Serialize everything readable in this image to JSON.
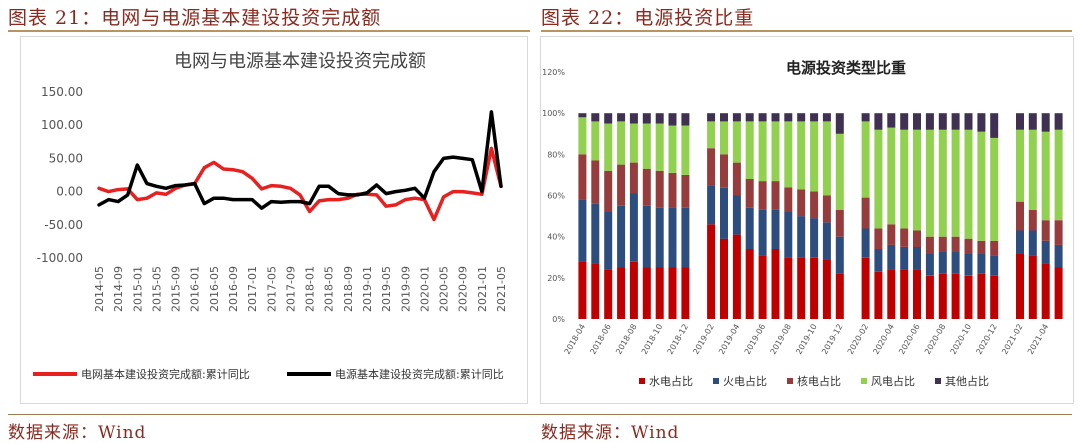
{
  "figures": [
    {
      "title": "图表 21：电网与电源基本建设投资完成额",
      "source": "数据来源：Wind"
    },
    {
      "title": "图表 22：电源投资比重",
      "source": "数据来源：Wind"
    }
  ],
  "chart_data": [
    {
      "type": "line",
      "title": "电网与电源基本建设投资完成额",
      "ylim": [
        -100,
        150
      ],
      "yticks": [
        "150.00",
        "100.00",
        "50.00",
        "0.00",
        "-50.00",
        "-100.00"
      ],
      "x": [
        "2014-05",
        "2014-07",
        "2014-09",
        "2014-11",
        "2015-01",
        "2015-03",
        "2015-05",
        "2015-07",
        "2015-09",
        "2015-11",
        "2016-01",
        "2016-03",
        "2016-05",
        "2016-07",
        "2016-09",
        "2016-11",
        "2017-01",
        "2017-03",
        "2017-05",
        "2017-07",
        "2017-09",
        "2017-11",
        "2018-01",
        "2018-03",
        "2018-05",
        "2018-07",
        "2018-09",
        "2018-11",
        "2019-01",
        "2019-03",
        "2019-05",
        "2019-07",
        "2019-09",
        "2019-11",
        "2020-01",
        "2020-03",
        "2020-05",
        "2020-07",
        "2020-09",
        "2020-11",
        "2021-01",
        "2021-03",
        "2021-05"
      ],
      "xtick_labels": [
        "2014-05",
        "2014-09",
        "2015-01",
        "2015-05",
        "2015-09",
        "2016-01",
        "2016-05",
        "2016-09",
        "2017-01",
        "2017-05",
        "2017-09",
        "2018-01",
        "2018-05",
        "2018-09",
        "2019-01",
        "2019-05",
        "2019-09",
        "2020-01",
        "2020-05",
        "2020-09",
        "2021-01",
        "2021-05"
      ],
      "grid": false,
      "legend_position": "bottom",
      "series": [
        {
          "name": "电网基本建设投资完成额:累计同比",
          "color": "#e8201f",
          "values": [
            5,
            0,
            3,
            4,
            -12,
            -10,
            -2,
            -4,
            5,
            10,
            12,
            36,
            44,
            34,
            33,
            30,
            20,
            4,
            9,
            8,
            5,
            -5,
            -30,
            -14,
            -12,
            -12,
            -10,
            -4,
            -4,
            -5,
            -22,
            -20,
            -12,
            -10,
            -12,
            -42,
            -8,
            0,
            0,
            -2,
            -4,
            65,
            8
          ]
        },
        {
          "name": "电源基本建设投资完成额:累计同比",
          "color": "#000000",
          "values": [
            -20,
            -12,
            -15,
            -5,
            40,
            12,
            8,
            5,
            9,
            10,
            12,
            -18,
            -10,
            -10,
            -12,
            -12,
            -12,
            -25,
            -15,
            -16,
            -15,
            -15,
            -18,
            8,
            8,
            -3,
            -5,
            -5,
            -2,
            10,
            -3,
            0,
            2,
            5,
            -10,
            30,
            50,
            52,
            50,
            48,
            0,
            120,
            8
          ]
        }
      ]
    },
    {
      "type": "bar",
      "stacked": true,
      "title": "电源投资类型比重",
      "ylim": [
        0,
        1.2
      ],
      "yticks": [
        "0%",
        "20%",
        "40%",
        "60%",
        "80%",
        "100%",
        "120%"
      ],
      "categories": [
        "2018-04",
        "2018-05",
        "2018-06",
        "2018-07",
        "2018-08",
        "2018-09",
        "2018-10",
        "2018-11",
        "2018-12",
        "",
        "2019-02",
        "2019-03",
        "2019-04",
        "2019-05",
        "2019-06",
        "2019-07",
        "2019-08",
        "2019-09",
        "2019-10",
        "2019-11",
        "2019-12",
        "",
        "2020-02",
        "2020-03",
        "2020-04",
        "2020-05",
        "2020-06",
        "2020-07",
        "2020-08",
        "2020-09",
        "2020-10",
        "2020-11",
        "2020-12",
        "",
        "2021-02",
        "2021-03",
        "2021-04",
        "2021-05"
      ],
      "xtick_labels": [
        "2018-04",
        "2018-06",
        "2018-08",
        "2018-10",
        "2018-12",
        "2019-02",
        "2019-04",
        "2019-06",
        "2019-08",
        "2019-10",
        "2019-12",
        "2020-02",
        "2020-04",
        "2020-06",
        "2020-08",
        "2020-10",
        "2020-12",
        "2021-02",
        "2021-04"
      ],
      "grid": false,
      "legend_position": "bottom",
      "series": [
        {
          "name": "水电占比",
          "color": "#c00000",
          "values": [
            0.28,
            0.27,
            0.24,
            0.25,
            0.28,
            0.25,
            0.25,
            0.25,
            0.25,
            null,
            0.46,
            0.39,
            0.41,
            0.34,
            0.31,
            0.34,
            0.3,
            0.3,
            0.3,
            0.29,
            0.22,
            null,
            0.3,
            0.23,
            0.24,
            0.24,
            0.24,
            0.21,
            0.22,
            0.22,
            0.21,
            0.22,
            0.21,
            null,
            0.32,
            0.31,
            0.27,
            0.25
          ]
        },
        {
          "name": "火电占比",
          "color": "#2e4d7f",
          "values": [
            0.3,
            0.29,
            0.28,
            0.3,
            0.33,
            0.3,
            0.29,
            0.29,
            0.29,
            null,
            0.19,
            0.25,
            0.19,
            0.2,
            0.22,
            0.19,
            0.22,
            0.2,
            0.19,
            0.18,
            0.18,
            null,
            0.14,
            0.11,
            0.12,
            0.11,
            0.11,
            0.11,
            0.11,
            0.11,
            0.11,
            0.1,
            0.1,
            null,
            0.11,
            0.12,
            0.11,
            0.11
          ]
        },
        {
          "name": "核电占比",
          "color": "#963c3c",
          "values": [
            0.22,
            0.21,
            0.2,
            0.2,
            0.15,
            0.18,
            0.18,
            0.17,
            0.16,
            null,
            0.18,
            0.16,
            0.16,
            0.14,
            0.14,
            0.14,
            0.12,
            0.13,
            0.13,
            0.13,
            0.13,
            null,
            0.15,
            0.1,
            0.1,
            0.09,
            0.08,
            0.08,
            0.07,
            0.07,
            0.07,
            0.06,
            0.07,
            null,
            0.14,
            0.1,
            0.1,
            0.12
          ]
        },
        {
          "name": "风电占比",
          "color": "#92d050",
          "values": [
            0.18,
            0.19,
            0.23,
            0.21,
            0.19,
            0.22,
            0.23,
            0.23,
            0.24,
            null,
            0.13,
            0.16,
            0.2,
            0.28,
            0.29,
            0.29,
            0.32,
            0.33,
            0.34,
            0.36,
            0.37,
            null,
            0.37,
            0.48,
            0.47,
            0.48,
            0.49,
            0.52,
            0.52,
            0.52,
            0.53,
            0.53,
            0.5,
            null,
            0.35,
            0.39,
            0.43,
            0.44
          ]
        },
        {
          "name": "其他占比",
          "color": "#403152",
          "values": [
            0.02,
            0.04,
            0.05,
            0.04,
            0.05,
            0.05,
            0.05,
            0.06,
            0.06,
            null,
            0.04,
            0.04,
            0.04,
            0.04,
            0.04,
            0.04,
            0.04,
            0.04,
            0.04,
            0.04,
            0.1,
            null,
            0.04,
            0.08,
            0.07,
            0.08,
            0.08,
            0.08,
            0.08,
            0.08,
            0.08,
            0.09,
            0.12,
            null,
            0.08,
            0.08,
            0.09,
            0.08
          ]
        }
      ]
    }
  ]
}
